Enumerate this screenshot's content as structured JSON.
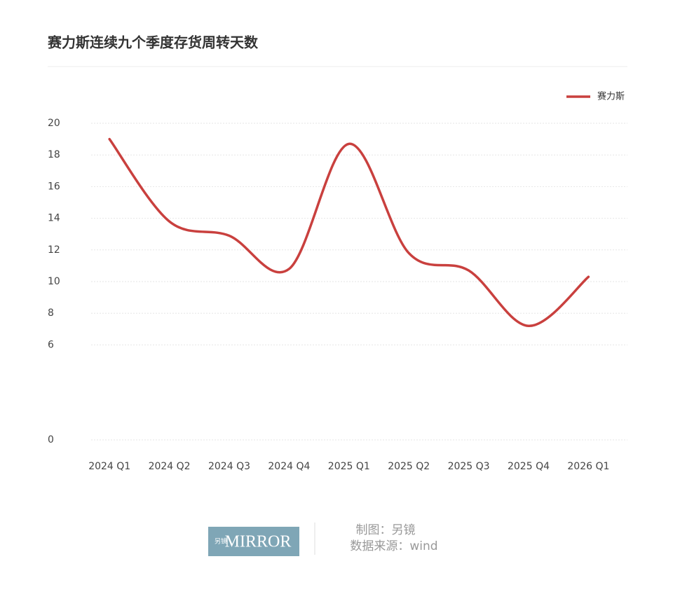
{
  "chart_data": {
    "type": "line",
    "title": "赛力斯连续九个季度存货周转天数",
    "categories": [
      "2024 Q1",
      "2024 Q2",
      "2024 Q3",
      "2024 Q4",
      "2025 Q1",
      "2025 Q2",
      "2025 Q3",
      "2025 Q4",
      "2026 Q1"
    ],
    "series": [
      {
        "name": "赛力斯",
        "color": "#c9403e",
        "values": [
          19.0,
          13.8,
          12.9,
          10.8,
          18.7,
          11.8,
          10.7,
          7.2,
          10.3
        ]
      }
    ],
    "ylim": [
      0,
      20
    ],
    "yticks": [
      0,
      6,
      8,
      10,
      12,
      14,
      16,
      18,
      20
    ],
    "grid": true,
    "legend": "top-right",
    "smooth": true
  },
  "footer": {
    "logo_small": "另镜",
    "logo": "MIRROR",
    "credit": "制图：另镜",
    "source": "数据来源：wind"
  }
}
